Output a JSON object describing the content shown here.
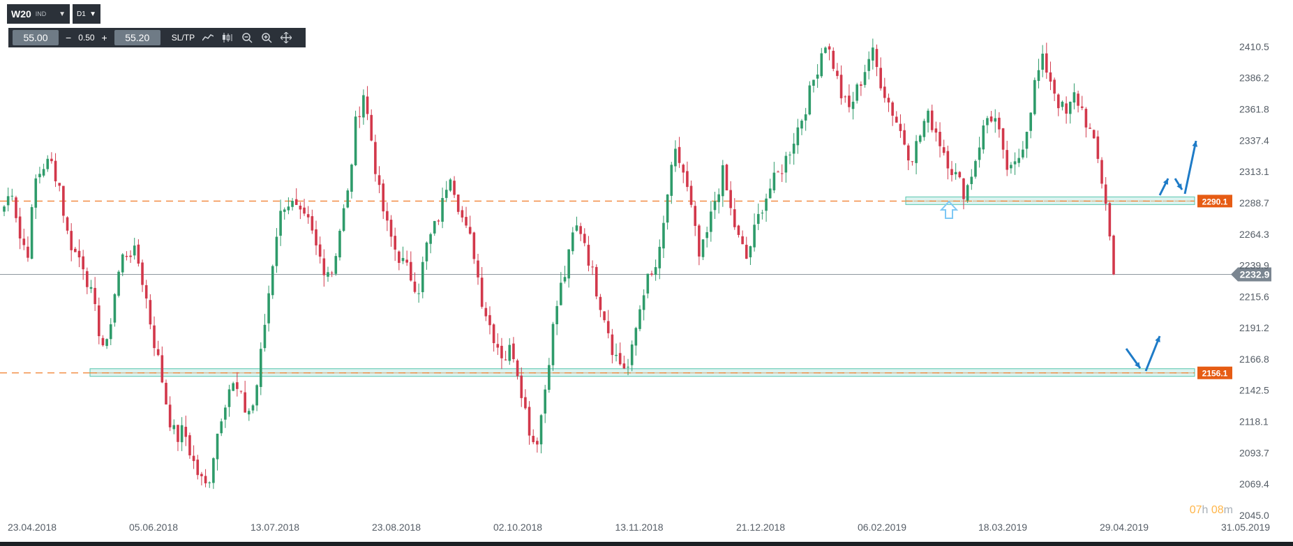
{
  "toolbar": {
    "symbol": "W20",
    "symbol_tag": "IND",
    "timeframe": "D1",
    "sell_price": "55.00",
    "lot_size": "0.50",
    "buy_price": "55.20",
    "sltp_label": "SL/TP",
    "icons": [
      "line-chart-icon",
      "candles-icon",
      "zoom-out-icon",
      "zoom-in-icon",
      "move-icon"
    ]
  },
  "timer": {
    "hours": "07",
    "h_unit": "h",
    "minutes": "08",
    "m_unit": "m"
  },
  "colors": {
    "bull": "#2e9b6a",
    "bear": "#d2384b",
    "level_line": "#f07d2a",
    "zone_fill": "#bfe9e3",
    "zone_border": "#58c6ae",
    "price_tag": "#e65c14",
    "current_tag": "#7b8691",
    "arrow_blue": "#1e7bc7",
    "up_arrow_light": "#7ec8f5"
  },
  "chart_data": {
    "type": "candlestick",
    "y_ticks": [
      "2410.5",
      "2386.2",
      "2361.8",
      "2337.4",
      "2313.1",
      "2288.7",
      "2264.3",
      "2239.9",
      "2215.6",
      "2191.2",
      "2166.8",
      "2142.5",
      "2118.1",
      "2093.7",
      "2069.4",
      "2045.0"
    ],
    "ylim": [
      2045.0,
      2410.5
    ],
    "x_ticks": [
      "23.04.2018",
      "05.06.2018",
      "13.07.2018",
      "23.08.2018",
      "02.10.2018",
      "13.11.2018",
      "21.12.2018",
      "06.02.2019",
      "18.03.2019",
      "29.04.2019",
      "31.05.2019"
    ],
    "current_price": "2232.9",
    "levels": [
      {
        "label": "2290.1",
        "value": 2290.1
      },
      {
        "label": "2156.1",
        "value": 2156.1
      }
    ],
    "waypoints": [
      [
        2286,
        2300,
        2262,
        2250,
        2306,
        2318,
        2320,
        2305,
        2266,
        2250,
        2244,
        2220,
        2193,
        2170
      ],
      [
        2214,
        2245,
        2252,
        2247,
        2220,
        2186,
        2158,
        2124,
        2104,
        2112,
        2090,
        2074,
        2066,
        2101
      ],
      [
        2130,
        2148,
        2140,
        2125,
        2132,
        2177,
        2226,
        2272,
        2291,
        2286,
        2276,
        2272,
        2252,
        2238
      ],
      [
        2236,
        2270,
        2296,
        2351,
        2375,
        2338,
        2296,
        2270,
        2253,
        2242,
        2232,
        2221,
        2254,
        2268
      ],
      [
        2285,
        2316,
        2291,
        2268,
        2255,
        2217,
        2196,
        2180,
        2167,
        2177,
        2150,
        2117,
        2098,
        2133
      ],
      [
        2182,
        2218,
        2238,
        2270,
        2267,
        2240,
        2217,
        2198,
        2172,
        2162,
        2160,
        2196,
        2226,
        2231
      ],
      [
        2251,
        2301,
        2328,
        2311,
        2281,
        2244,
        2265,
        2292,
        2312,
        2282,
        2260,
        2245,
        2266,
        2287
      ],
      [
        2300,
        2310,
        2322,
        2338,
        2354,
        2372,
        2393,
        2416,
        2400,
        2375,
        2360,
        2374,
        2390,
        2408
      ],
      [
        2387,
        2370,
        2356,
        2340,
        2324,
        2337,
        2357,
        2349,
        2333,
        2319,
        2307,
        2296,
        2316,
        2340
      ],
      [
        2358,
        2352,
        2319,
        2311,
        2327,
        2351,
        2385,
        2400,
        2384,
        2366,
        2356,
        2373,
        2361,
        2343
      ],
      [
        2321,
        2290,
        2232.9
      ]
    ]
  }
}
